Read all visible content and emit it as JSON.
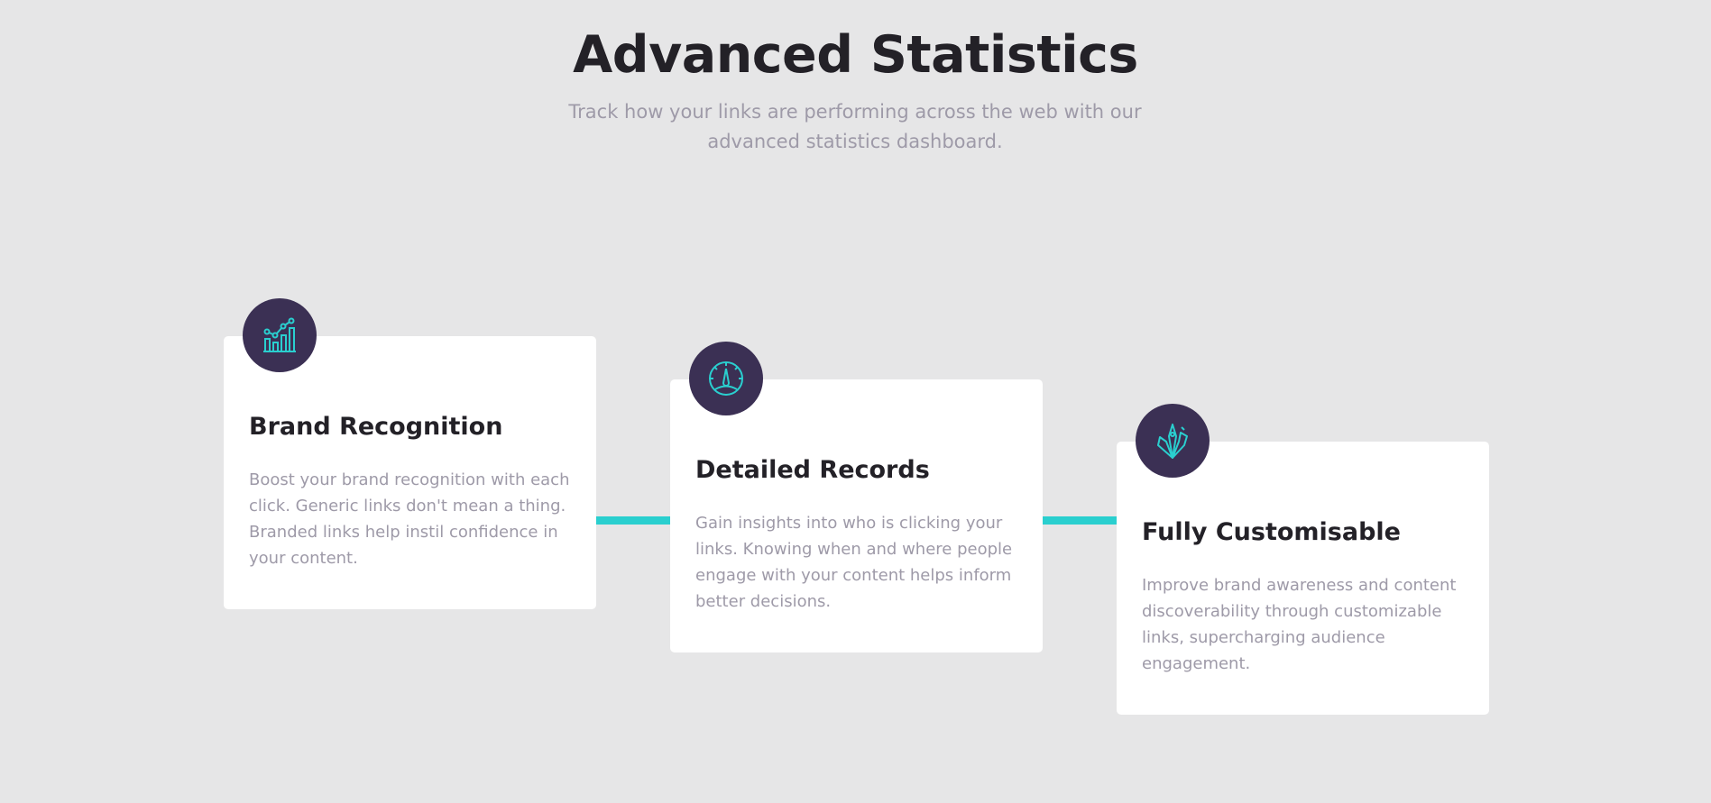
{
  "section": {
    "title": "Advanced Statistics",
    "subtitle": "Track how your links are performing across the web with our advanced statistics dashboard."
  },
  "cards": [
    {
      "icon": "brand-recognition-chart-icon",
      "title": "Brand Recognition",
      "text": "Boost your brand recognition with each click. Generic links don't mean a thing. Branded links help instil confidence in your content."
    },
    {
      "icon": "detailed-records-gauge-icon",
      "title": "Detailed Records",
      "text": "Gain insights into who is clicking your links. Knowing when and where people engage with your content helps inform better decisions."
    },
    {
      "icon": "fully-customisable-tools-icon",
      "title": "Fully Customisable",
      "text": "Improve brand awareness and content discoverability through customizable links, supercharging audience engagement."
    }
  ],
  "colors": {
    "background": "#e6e6e7",
    "card": "#ffffff",
    "icon_circle": "#3b3054",
    "accent_cyan": "#2acfcf",
    "heading": "#232127",
    "body_text": "#9e9aa8"
  }
}
